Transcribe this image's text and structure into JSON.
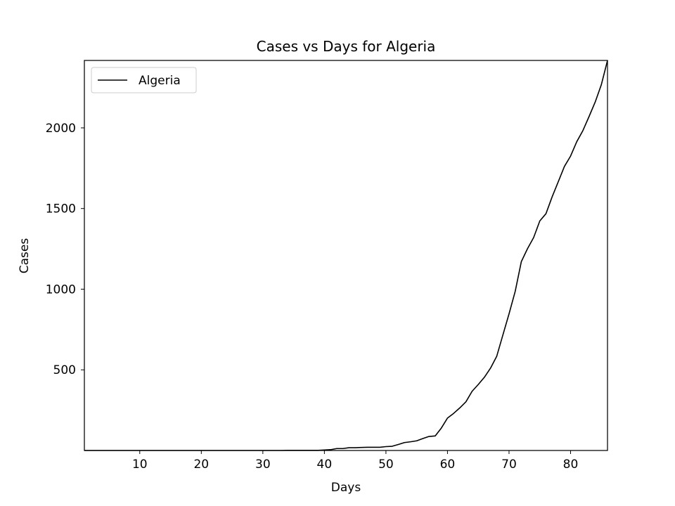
{
  "chart_data": {
    "type": "line",
    "title": "Cases vs Days for Algeria",
    "xlabel": "Days",
    "ylabel": "Cases",
    "xlim": [
      1,
      86
    ],
    "ylim": [
      0,
      2418
    ],
    "xticks": [
      10,
      20,
      30,
      40,
      50,
      60,
      70,
      80
    ],
    "yticks": [
      500,
      1000,
      1500,
      2000
    ],
    "grid": false,
    "legend_position": "upper left",
    "series": [
      {
        "name": "Algeria",
        "color": "#000000",
        "x": [
          1,
          2,
          3,
          4,
          5,
          6,
          7,
          8,
          9,
          10,
          11,
          12,
          13,
          14,
          15,
          16,
          17,
          18,
          19,
          20,
          21,
          22,
          23,
          24,
          25,
          26,
          27,
          28,
          29,
          30,
          31,
          32,
          33,
          34,
          35,
          36,
          37,
          38,
          39,
          40,
          41,
          42,
          43,
          44,
          45,
          46,
          47,
          48,
          49,
          50,
          51,
          52,
          53,
          54,
          55,
          56,
          57,
          58,
          59,
          60,
          61,
          62,
          63,
          64,
          65,
          66,
          67,
          68,
          69,
          70,
          71,
          72,
          73,
          74,
          75,
          76,
          77,
          78,
          79,
          80,
          81,
          82,
          83,
          84,
          85,
          86
        ],
        "y": [
          0,
          0,
          0,
          0,
          0,
          0,
          0,
          0,
          0,
          0,
          0,
          0,
          0,
          0,
          0,
          0,
          0,
          0,
          0,
          0,
          0,
          0,
          0,
          0,
          0,
          0,
          0,
          0,
          0,
          0,
          0,
          0,
          0,
          1,
          1,
          1,
          1,
          1,
          1,
          3,
          5,
          12,
          12,
          17,
          17,
          19,
          20,
          20,
          20,
          24,
          26,
          37,
          49,
          54,
          60,
          74,
          87,
          90,
          139,
          201,
          230,
          264,
          302,
          367,
          409,
          454,
          511,
          584,
          716,
          847,
          986,
          1171,
          1251,
          1320,
          1423,
          1468,
          1572,
          1666,
          1761,
          1825,
          1914,
          1983,
          2070,
          2160,
          2268,
          2418
        ]
      }
    ]
  }
}
